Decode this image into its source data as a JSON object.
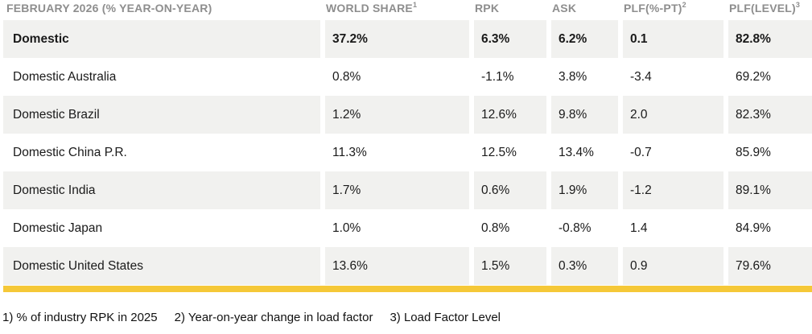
{
  "table": {
    "header": {
      "title": "FEBRUARY 2026 (% YEAR-ON-YEAR)",
      "columns": [
        {
          "label": "WORLD SHARE",
          "sup": "1"
        },
        {
          "label": "RPK",
          "sup": ""
        },
        {
          "label": "ASK",
          "sup": ""
        },
        {
          "label": "PLF(%-PT)",
          "sup": "2"
        },
        {
          "label": "PLF(LEVEL)",
          "sup": "3"
        }
      ]
    },
    "rows": [
      {
        "label": "Domestic",
        "emphasis": true,
        "values": [
          "37.2%",
          "6.3%",
          "6.2%",
          "0.1",
          "82.8%"
        ]
      },
      {
        "label": "Domestic Australia",
        "emphasis": false,
        "values": [
          "0.8%",
          "-1.1%",
          "3.8%",
          "-3.4",
          "69.2%"
        ]
      },
      {
        "label": "Domestic Brazil",
        "emphasis": false,
        "values": [
          "1.2%",
          "12.6%",
          "9.8%",
          "2.0",
          "82.3%"
        ]
      },
      {
        "label": "Domestic China P.R.",
        "emphasis": false,
        "values": [
          "11.3%",
          "12.5%",
          "13.4%",
          "-0.7",
          "85.9%"
        ]
      },
      {
        "label": "Domestic India",
        "emphasis": false,
        "values": [
          "1.7%",
          "0.6%",
          "1.9%",
          "-1.2",
          "89.1%"
        ]
      },
      {
        "label": "Domestic Japan",
        "emphasis": false,
        "values": [
          "1.0%",
          "0.8%",
          "-0.8%",
          "1.4",
          "84.9%"
        ]
      },
      {
        "label": "Domestic United States",
        "emphasis": false,
        "values": [
          "13.6%",
          "1.5%",
          "0.3%",
          "0.9",
          "79.6%"
        ]
      }
    ]
  },
  "footnotes": [
    "1) % of industry RPK in 2025",
    "2) Year-on-year change in load factor",
    "3) Load Factor Level"
  ],
  "colors": {
    "accent_bar": "#f5c838",
    "stripe": "#f1f1ef",
    "header_text": "#8e8e8e",
    "body_text": "#1a1a1a"
  }
}
